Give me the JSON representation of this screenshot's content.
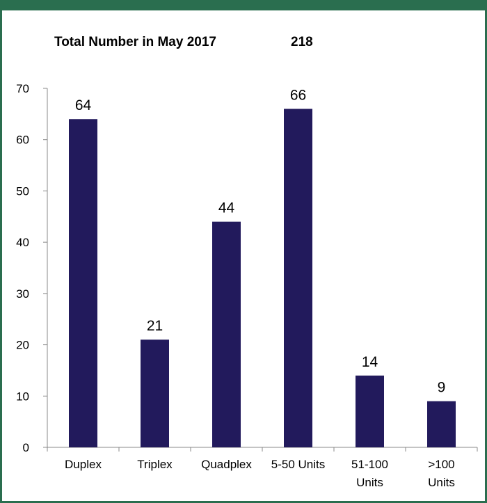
{
  "chart_data": {
    "type": "bar",
    "title": "Total Number in May 2017",
    "total_value": "218",
    "categories": [
      [
        "Duplex"
      ],
      [
        "Triplex"
      ],
      [
        "Quadplex"
      ],
      [
        "5-50 Units"
      ],
      [
        "51-100",
        "Units"
      ],
      [
        ">100",
        "Units"
      ]
    ],
    "values": [
      64,
      21,
      44,
      66,
      14,
      9
    ],
    "data_labels": [
      "64",
      "21",
      "44",
      "66",
      "14",
      "9"
    ],
    "yticks": [
      0,
      10,
      20,
      30,
      40,
      50,
      60,
      70
    ],
    "ylim": [
      0,
      70
    ],
    "xlabel": "",
    "ylabel": "",
    "grid": false,
    "legend": "none",
    "bar_color": "#221a5c",
    "frame_color": "#2a6e4f"
  }
}
